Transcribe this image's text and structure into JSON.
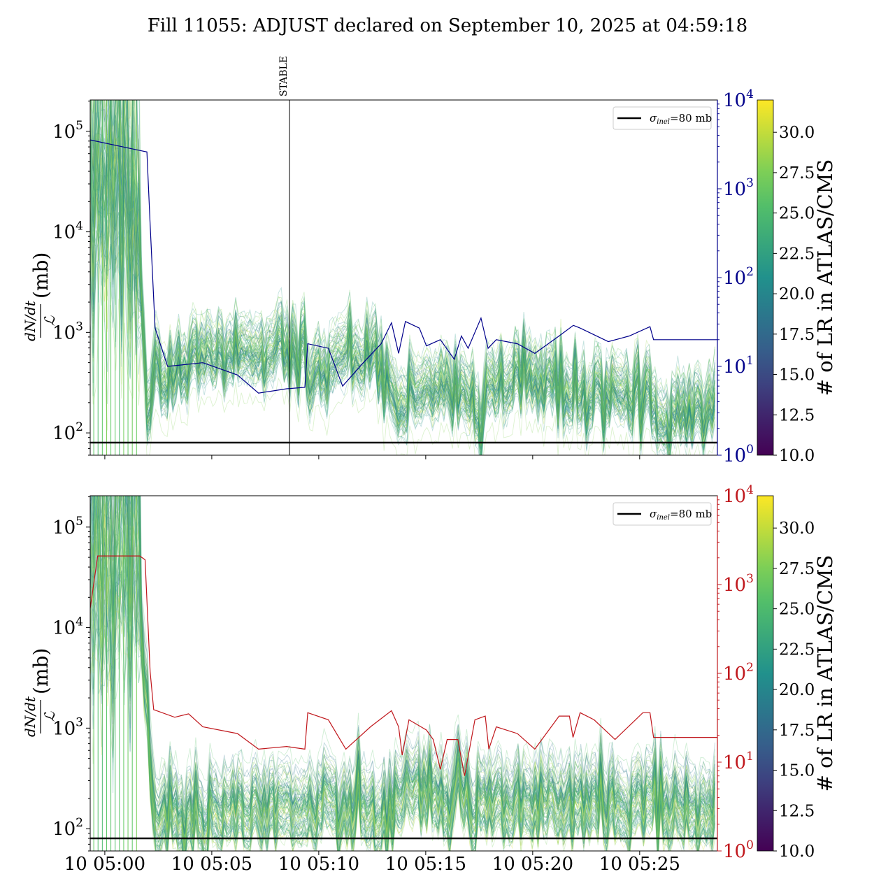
{
  "title": "Fill 11055: ADJUST declared on September 10, 2025 at 04:59:18",
  "chart_data": [
    {
      "type": "line",
      "panel": "top",
      "xlim": [
        "04:59:19",
        "05:28:38"
      ],
      "x_ticks": [
        "05:00:00",
        "05:05:00",
        "05:10:00",
        "05:15:00",
        "05:20:00",
        "05:25:00"
      ],
      "x_tick_labels": [],
      "ylabel": {
        "numerator": "dN/dt",
        "denominator": "ℒ",
        "unit": "(mb)"
      },
      "ylim": [
        60,
        205000
      ],
      "yscale": "log",
      "y_ticks": [
        {
          "base": "10",
          "exp": "2",
          "value": 100
        },
        {
          "base": "10",
          "exp": "3",
          "value": 1000
        },
        {
          "base": "10",
          "exp": "4",
          "value": 10000
        },
        {
          "base": "10",
          "exp": "5",
          "value": 100000
        }
      ],
      "y2lim": [
        1,
        10000
      ],
      "y2scale": "log",
      "y2_color": "#00008b",
      "y2_ticks": [
        {
          "base": "10",
          "exp": "0",
          "value": 1
        },
        {
          "base": "10",
          "exp": "1",
          "value": 10
        },
        {
          "base": "10",
          "exp": "2",
          "value": 100
        },
        {
          "base": "10",
          "exp": "3",
          "value": 1000
        },
        {
          "base": "10",
          "exp": "4",
          "value": 10000
        }
      ],
      "hline": {
        "value": 80,
        "label_sym": "σ",
        "label_sub": "inel",
        "label_rest": "=80 mb"
      },
      "legend_position": "top-right",
      "vline": {
        "x": "05:08:38",
        "label": "STABLE"
      },
      "band_median": [
        [
          "04:59:19",
          40000
        ],
        [
          "05:01:30",
          40000
        ],
        [
          "05:02:00",
          150
        ],
        [
          "05:02:20",
          800
        ],
        [
          "05:02:40",
          400
        ],
        [
          "05:04:00",
          600
        ],
        [
          "05:06:00",
          700
        ],
        [
          "05:08:00",
          800
        ],
        [
          "05:09:20",
          700
        ],
        [
          "05:09:30",
          300
        ],
        [
          "05:11:00",
          700
        ],
        [
          "05:12:00",
          700
        ],
        [
          "05:13:00",
          500
        ],
        [
          "05:13:40",
          200
        ],
        [
          "05:15:00",
          300
        ],
        [
          "05:17:00",
          300
        ],
        [
          "05:17:35",
          150
        ],
        [
          "05:18:00",
          350
        ],
        [
          "05:20:00",
          350
        ],
        [
          "05:22:00",
          250
        ],
        [
          "05:25:00",
          250
        ],
        [
          "05:26:00",
          180
        ],
        [
          "05:28:38",
          180
        ]
      ],
      "series_y2": [
        [
          "04:59:19",
          3550
        ],
        [
          "05:01:38",
          2700
        ],
        [
          "05:01:58",
          2600
        ],
        [
          "05:02:07",
          400
        ],
        [
          "05:02:21",
          27
        ],
        [
          "05:02:56",
          10
        ],
        [
          "05:04:35",
          11
        ],
        [
          "05:06:12",
          8
        ],
        [
          "05:07:11",
          5
        ],
        [
          "05:08:30",
          5.6
        ],
        [
          "05:09:21",
          5.8
        ],
        [
          "05:09:29",
          18
        ],
        [
          "05:10:27",
          16
        ],
        [
          "05:11:07",
          6
        ],
        [
          "05:12:05",
          11
        ],
        [
          "05:12:55",
          18
        ],
        [
          "05:13:24",
          31
        ],
        [
          "05:13:44",
          14
        ],
        [
          "05:14:03",
          32
        ],
        [
          "05:14:42",
          27
        ],
        [
          "05:15:02",
          17
        ],
        [
          "05:15:41",
          20
        ],
        [
          "05:16:20",
          12
        ],
        [
          "05:16:40",
          22
        ],
        [
          "05:16:59",
          16
        ],
        [
          "05:17:35",
          35
        ],
        [
          "05:17:55",
          16
        ],
        [
          "05:18:18",
          20
        ],
        [
          "05:19:17",
          18
        ],
        [
          "05:20:06",
          14
        ],
        [
          "05:21:14",
          22
        ],
        [
          "05:21:54",
          29
        ],
        [
          "05:22:13",
          27
        ],
        [
          "05:23:32",
          19
        ],
        [
          "05:24:31",
          22
        ],
        [
          "05:25:29",
          28
        ],
        [
          "05:25:39",
          20
        ],
        [
          "05:28:38",
          20
        ]
      ]
    },
    {
      "type": "line",
      "panel": "bottom",
      "xlim": [
        "04:59:19",
        "05:28:38"
      ],
      "x_ticks": [
        "05:00:00",
        "05:05:00",
        "05:10:00",
        "05:15:00",
        "05:20:00",
        "05:25:00"
      ],
      "x_tick_labels": [
        "10 05:00",
        "10 05:05",
        "10 05:10",
        "10 05:15",
        "10 05:20",
        "10 05:25"
      ],
      "ylabel": {
        "numerator": "dN/dt",
        "denominator": "ℒ",
        "unit": "(mb)"
      },
      "ylim": [
        60,
        205000
      ],
      "yscale": "log",
      "y_ticks": [
        {
          "base": "10",
          "exp": "2",
          "value": 100
        },
        {
          "base": "10",
          "exp": "3",
          "value": 1000
        },
        {
          "base": "10",
          "exp": "4",
          "value": 10000
        },
        {
          "base": "10",
          "exp": "5",
          "value": 100000
        }
      ],
      "y2lim": [
        1,
        10000
      ],
      "y2scale": "log",
      "y2_color": "#c0171c",
      "y2_ticks": [
        {
          "base": "10",
          "exp": "0",
          "value": 1
        },
        {
          "base": "10",
          "exp": "1",
          "value": 10
        },
        {
          "base": "10",
          "exp": "2",
          "value": 100
        },
        {
          "base": "10",
          "exp": "3",
          "value": 1000
        },
        {
          "base": "10",
          "exp": "4",
          "value": 10000
        }
      ],
      "hline": {
        "value": 80,
        "label_sym": "σ",
        "label_sub": "inel",
        "label_rest": "=80 mb"
      },
      "legend_position": "top-right",
      "band_median": [
        [
          "04:59:19",
          60000
        ],
        [
          "05:01:30",
          60000
        ],
        [
          "05:02:00",
          1500
        ],
        [
          "05:02:20",
          120
        ],
        [
          "05:05:00",
          150
        ],
        [
          "05:10:00",
          150
        ],
        [
          "05:13:30",
          150
        ],
        [
          "05:14:30",
          250
        ],
        [
          "05:15:30",
          250
        ],
        [
          "05:16:00",
          120
        ],
        [
          "05:16:40",
          400
        ],
        [
          "05:17:10",
          150
        ],
        [
          "05:20:00",
          150
        ],
        [
          "05:22:00",
          200
        ],
        [
          "05:28:38",
          150
        ]
      ],
      "series_y2": [
        [
          "04:59:19",
          540
        ],
        [
          "04:59:40",
          2100
        ],
        [
          "05:01:38",
          2100
        ],
        [
          "05:01:53",
          1900
        ],
        [
          "05:02:07",
          105
        ],
        [
          "05:02:17",
          39
        ],
        [
          "05:03:16",
          32
        ],
        [
          "05:03:55",
          35
        ],
        [
          "05:04:35",
          25
        ],
        [
          "05:06:12",
          21
        ],
        [
          "05:07:11",
          14
        ],
        [
          "05:08:30",
          15
        ],
        [
          "05:09:21",
          14
        ],
        [
          "05:09:29",
          36
        ],
        [
          "05:10:27",
          30
        ],
        [
          "05:11:16",
          14
        ],
        [
          "05:12:25",
          25
        ],
        [
          "05:13:24",
          38
        ],
        [
          "05:13:44",
          25
        ],
        [
          "05:13:54",
          12
        ],
        [
          "05:14:13",
          30
        ],
        [
          "05:15:02",
          23
        ],
        [
          "05:15:21",
          18
        ],
        [
          "05:15:41",
          8.3
        ],
        [
          "05:16:00",
          18
        ],
        [
          "05:16:30",
          18
        ],
        [
          "05:16:49",
          7
        ],
        [
          "05:17:18",
          30
        ],
        [
          "05:17:47",
          33
        ],
        [
          "05:17:57",
          14
        ],
        [
          "05:18:18",
          25
        ],
        [
          "05:19:17",
          21
        ],
        [
          "05:20:06",
          14
        ],
        [
          "05:21:14",
          33
        ],
        [
          "05:21:43",
          33
        ],
        [
          "05:21:53",
          19
        ],
        [
          "05:22:13",
          36
        ],
        [
          "05:22:52",
          30
        ],
        [
          "05:23:51",
          18
        ],
        [
          "05:25:09",
          36
        ],
        [
          "05:25:29",
          36
        ],
        [
          "05:25:39",
          19
        ],
        [
          "05:28:38",
          19
        ]
      ]
    }
  ],
  "colorbar": {
    "label": "# of LR in ATLAS/CMS",
    "range": [
      10,
      32
    ],
    "colormap": "viridis",
    "ticks": [
      "10.0",
      "12.5",
      "15.0",
      "17.5",
      "20.0",
      "22.5",
      "25.0",
      "27.5",
      "30.0"
    ]
  }
}
